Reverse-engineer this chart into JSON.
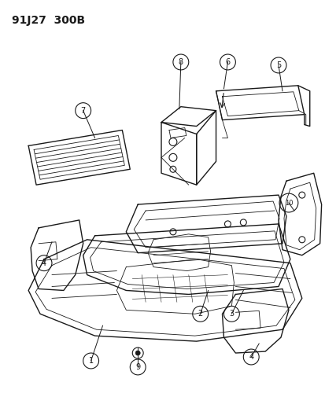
{
  "title": "91J27  300B",
  "bg_color": "#ffffff",
  "line_color": "#1a1a1a",
  "title_fontsize": 10,
  "fig_width": 4.14,
  "fig_height": 5.33,
  "dpi": 100
}
